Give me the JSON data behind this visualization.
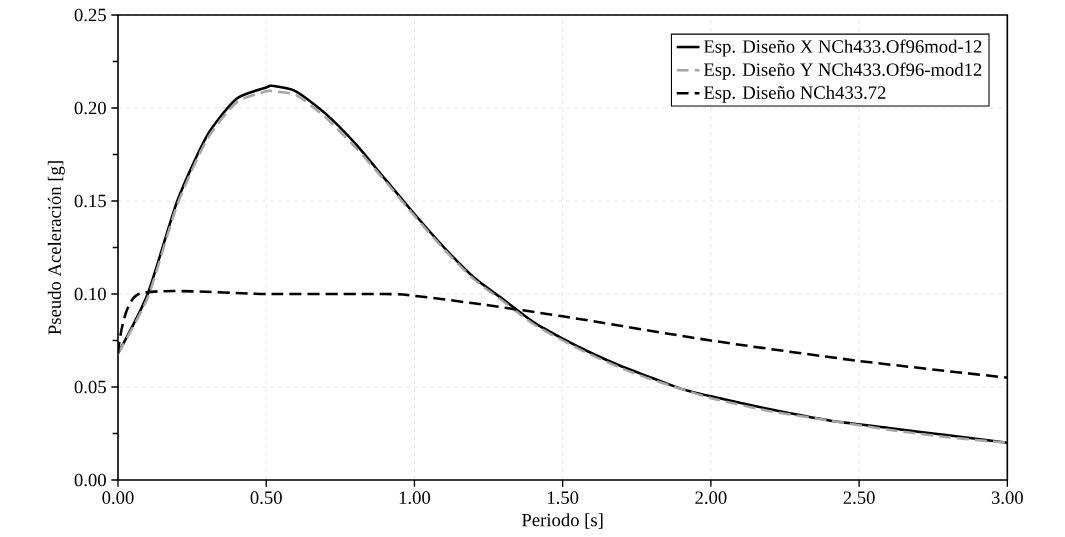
{
  "chart_data": {
    "type": "line",
    "xlabel": "Periodo [s]",
    "ylabel": "Pseudo Aceleración [g]",
    "xlim": [
      0,
      3
    ],
    "ylim": [
      0,
      0.25
    ],
    "xticks": [
      {
        "value": 0,
        "label": "0.00"
      },
      {
        "value": 0.5,
        "label": "0.50"
      },
      {
        "value": 1,
        "label": "1.00"
      },
      {
        "value": 1.5,
        "label": "1.50"
      },
      {
        "value": 2,
        "label": "2.00"
      },
      {
        "value": 2.5,
        "label": "2.50"
      },
      {
        "value": 3,
        "label": "3.00"
      }
    ],
    "yticks": [
      {
        "value": 0,
        "label": "0.00"
      },
      {
        "value": 0.05,
        "label": "0.05"
      },
      {
        "value": 0.1,
        "label": "0.10"
      },
      {
        "value": 0.15,
        "label": "0.15"
      },
      {
        "value": 0.2,
        "label": "0.20"
      },
      {
        "value": 0.25,
        "label": "0.25"
      }
    ],
    "grid": true,
    "legend": "top right",
    "marker": "none",
    "series": [
      {
        "name": "Esp. Diseño X NCh433.Of96mod-12",
        "color": "#000000",
        "line_style": "solid",
        "x": [
          0,
          0.1,
          0.2,
          0.3,
          0.4,
          0.5,
          0.52,
          0.6,
          0.7,
          0.8,
          0.9,
          1.0,
          1.1,
          1.2,
          1.3,
          1.4,
          1.5,
          1.6,
          1.7,
          1.8,
          1.9,
          2.0,
          2.2,
          2.4,
          2.6,
          2.8,
          3.0
        ],
        "values": [
          0.068,
          0.1,
          0.15,
          0.185,
          0.205,
          0.211,
          0.212,
          0.209,
          0.197,
          0.181,
          0.162,
          0.143,
          0.125,
          0.109,
          0.097,
          0.085,
          0.076,
          0.068,
          0.061,
          0.055,
          0.049,
          0.045,
          0.038,
          0.032,
          0.028,
          0.024,
          0.02
        ]
      },
      {
        "name": "Esp. Diseño Y NCh433.Of96-mod12",
        "color": "#a6a6a6",
        "line_style": "dashed",
        "x": [
          0,
          0.1,
          0.2,
          0.3,
          0.4,
          0.5,
          0.52,
          0.6,
          0.7,
          0.8,
          0.9,
          1.0,
          1.1,
          1.2,
          1.3,
          1.4,
          1.5,
          1.6,
          1.7,
          1.8,
          1.9,
          2.0,
          2.2,
          2.4,
          2.6,
          2.8,
          3.0
        ],
        "values": [
          0.068,
          0.098,
          0.148,
          0.183,
          0.203,
          0.209,
          0.209,
          0.207,
          0.195,
          0.179,
          0.161,
          0.142,
          0.124,
          0.108,
          0.096,
          0.084,
          0.075,
          0.067,
          0.06,
          0.054,
          0.049,
          0.044,
          0.037,
          0.032,
          0.027,
          0.023,
          0.02
        ]
      },
      {
        "name": "Esp. Diseño NCh433.72",
        "color": "#000000",
        "line_style": "dashed",
        "x": [
          0,
          0.07,
          0.5,
          0.9,
          1.0,
          1.2,
          1.5,
          2.0,
          2.5,
          3.0
        ],
        "values": [
          0.068,
          0.1,
          0.1,
          0.1,
          0.099,
          0.095,
          0.088,
          0.075,
          0.064,
          0.055
        ]
      }
    ]
  }
}
